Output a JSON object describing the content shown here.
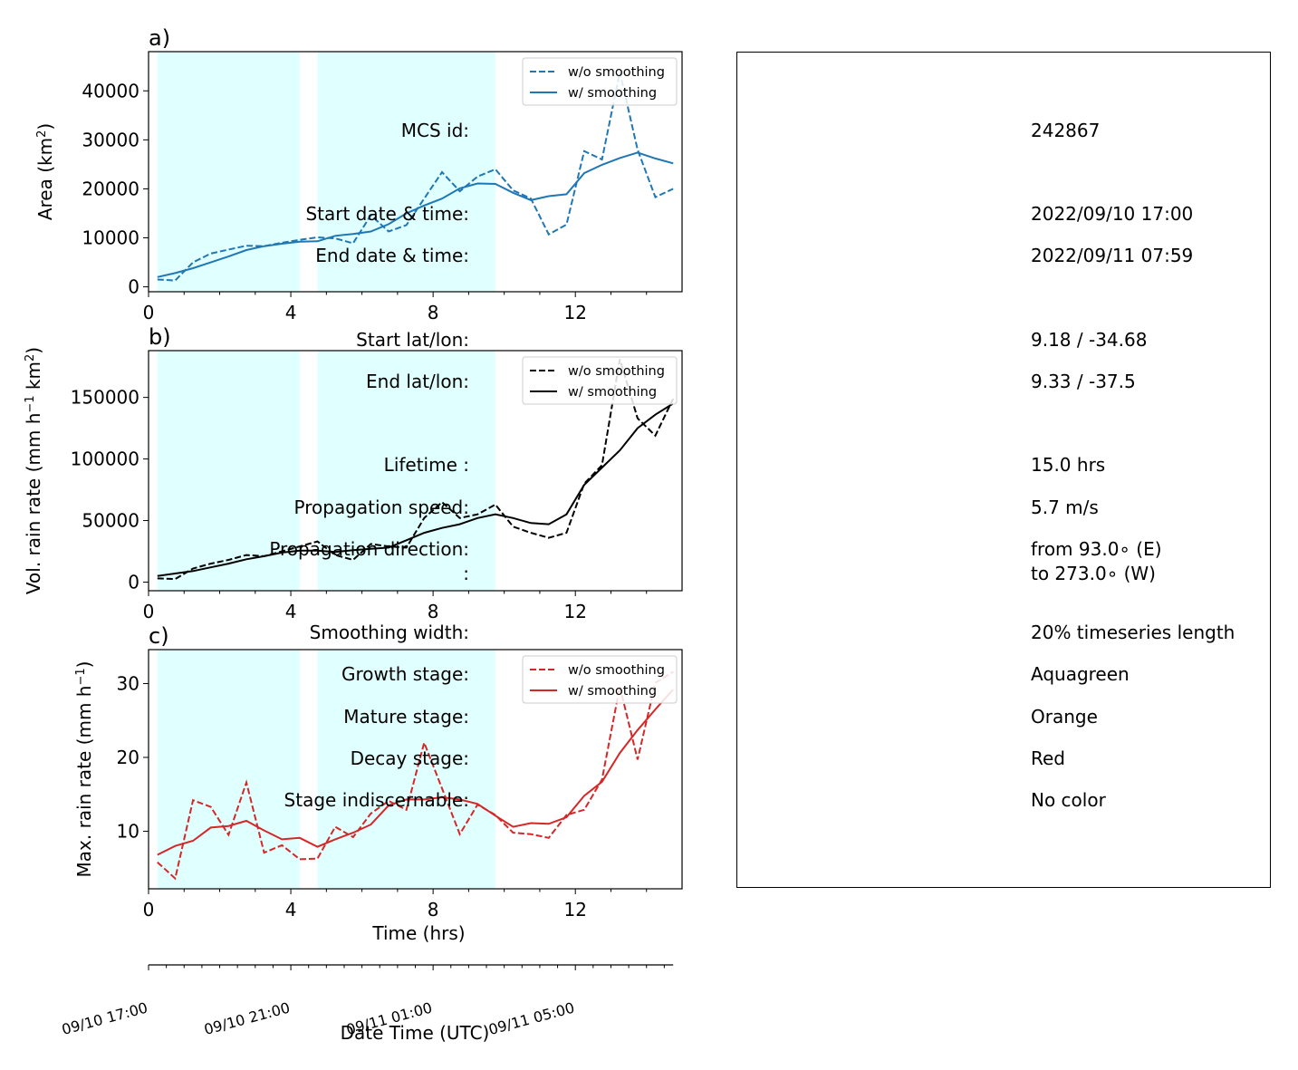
{
  "chart_data": [
    {
      "type": "line",
      "panel": "a)",
      "ylabel": "Area  (km²)",
      "xlim": [
        0,
        15
      ],
      "ylim": [
        -1000,
        48000
      ],
      "xticks": [
        0,
        4,
        8,
        12
      ],
      "yticks": [
        0,
        10000,
        20000,
        30000,
        40000
      ],
      "shaded_spans": [
        [
          0.25,
          4.25
        ],
        [
          4.75,
          9.75
        ]
      ],
      "legend": "top-right",
      "series": [
        {
          "name": "w/o smoothing",
          "style": "dashed",
          "color": "#1f77b4",
          "x": [
            0.25,
            0.75,
            1.25,
            1.75,
            2.25,
            2.75,
            3.25,
            3.75,
            4.25,
            4.75,
            5.25,
            5.75,
            6.25,
            6.75,
            7.25,
            7.75,
            8.25,
            8.75,
            9.25,
            9.75,
            10.25,
            10.75,
            11.25,
            11.75,
            12.25,
            12.75,
            13.25,
            13.75,
            14.25,
            14.75
          ],
          "y": [
            1500,
            1300,
            5000,
            6800,
            7600,
            8400,
            8300,
            9000,
            9600,
            10100,
            9900,
            8900,
            14600,
            11300,
            12600,
            18000,
            23400,
            19500,
            22500,
            24000,
            19700,
            18000,
            10700,
            12700,
            27700,
            26000,
            43800,
            28000,
            18300,
            20000
          ]
        },
        {
          "name": "w/ smoothing",
          "style": "solid",
          "color": "#1f77b4",
          "x": [
            0.25,
            0.75,
            1.25,
            1.75,
            2.25,
            2.75,
            3.25,
            3.75,
            4.25,
            4.75,
            5.25,
            5.75,
            6.25,
            6.75,
            7.25,
            7.75,
            8.25,
            8.75,
            9.25,
            9.75,
            10.25,
            10.75,
            11.25,
            11.75,
            12.25,
            12.75,
            13.25,
            13.75,
            14.25,
            14.75
          ],
          "y": [
            2000,
            2800,
            3800,
            5000,
            6200,
            7500,
            8300,
            8800,
            9200,
            9300,
            10400,
            10800,
            11300,
            12800,
            15000,
            16600,
            18000,
            20100,
            21100,
            21000,
            19200,
            17700,
            18500,
            18900,
            23200,
            24900,
            26300,
            27400,
            26200,
            25200
          ]
        }
      ]
    },
    {
      "type": "line",
      "panel": "b)",
      "ylabel": "Vol. rain rate (mm h⁻¹ km²)",
      "xlim": [
        0,
        15
      ],
      "ylim": [
        -7000,
        188000
      ],
      "xticks": [
        0,
        4,
        8,
        12
      ],
      "yticks": [
        0,
        50000,
        100000,
        150000
      ],
      "shaded_spans": [
        [
          0.25,
          4.25
        ],
        [
          4.75,
          9.75
        ]
      ],
      "legend": "top-right",
      "series": [
        {
          "name": "w/o smoothing",
          "style": "dashed",
          "color": "#000000",
          "x": [
            0.25,
            0.75,
            1.25,
            1.75,
            2.25,
            2.75,
            3.25,
            3.75,
            4.25,
            4.75,
            5.25,
            5.75,
            6.25,
            6.75,
            7.25,
            7.75,
            8.25,
            8.75,
            9.25,
            9.75,
            10.25,
            10.75,
            11.25,
            11.75,
            12.25,
            12.75,
            13.25,
            13.75,
            14.25,
            14.75
          ],
          "y": [
            3000,
            2500,
            11000,
            15000,
            18000,
            22000,
            21000,
            25000,
            29000,
            33000,
            22000,
            18000,
            31000,
            29000,
            28000,
            52000,
            65000,
            52000,
            55000,
            63000,
            45000,
            40000,
            36000,
            40000,
            80000,
            95000,
            181000,
            133000,
            119000,
            149000
          ]
        },
        {
          "name": "w/ smoothing",
          "style": "solid",
          "color": "#000000",
          "x": [
            0.25,
            0.75,
            1.25,
            1.75,
            2.25,
            2.75,
            3.25,
            3.75,
            4.25,
            4.75,
            5.25,
            5.75,
            6.25,
            6.75,
            7.25,
            7.75,
            8.25,
            8.75,
            9.25,
            9.75,
            10.25,
            10.75,
            11.25,
            11.75,
            12.25,
            12.75,
            13.25,
            13.75,
            14.25,
            14.75
          ],
          "y": [
            5000,
            7000,
            9000,
            12000,
            15000,
            18500,
            21000,
            24000,
            25500,
            25500,
            24500,
            26000,
            27000,
            28000,
            34000,
            40000,
            44000,
            47000,
            52000,
            55000,
            52000,
            48000,
            47000,
            55000,
            79000,
            93000,
            107000,
            125000,
            136000,
            145000
          ]
        }
      ]
    },
    {
      "type": "line",
      "panel": "c)",
      "ylabel": "Max. rain rate  (mm h⁻¹)",
      "xlabel": "Time (hrs)",
      "xlim": [
        0,
        15
      ],
      "ylim": [
        2.2,
        34.6
      ],
      "xticks": [
        0,
        4,
        8,
        12
      ],
      "yticks": [
        10,
        20,
        30
      ],
      "shaded_spans": [
        [
          0.25,
          4.25
        ],
        [
          4.75,
          9.75
        ]
      ],
      "legend": "top-right",
      "series": [
        {
          "name": "w/o smoothing",
          "style": "dashed",
          "color": "#d62728",
          "x": [
            0.25,
            0.75,
            1.25,
            1.75,
            2.25,
            2.75,
            3.25,
            3.75,
            4.25,
            4.75,
            5.25,
            5.75,
            6.25,
            6.75,
            7.25,
            7.75,
            8.25,
            8.75,
            9.25,
            9.75,
            10.25,
            10.75,
            11.25,
            11.75,
            12.25,
            12.75,
            13.25,
            13.75,
            14.25,
            14.75
          ],
          "y": [
            5.8,
            3.6,
            14.2,
            13.3,
            9.5,
            16.6,
            7.1,
            8.1,
            6.2,
            6.3,
            10.6,
            9.2,
            12.4,
            14.1,
            12.9,
            22.0,
            15.8,
            9.6,
            13.6,
            12.2,
            9.8,
            9.6,
            9.1,
            12.2,
            12.9,
            17.0,
            29.6,
            19.7,
            30.1,
            31.6
          ]
        },
        {
          "name": "w/ smoothing",
          "style": "solid",
          "color": "#d62728",
          "x": [
            0.25,
            0.75,
            1.25,
            1.75,
            2.25,
            2.75,
            3.25,
            3.75,
            4.25,
            4.75,
            5.25,
            5.75,
            6.25,
            6.75,
            7.25,
            7.75,
            8.25,
            8.75,
            9.25,
            9.75,
            10.25,
            10.75,
            11.25,
            11.75,
            12.25,
            12.75,
            13.25,
            13.75,
            14.25,
            14.75
          ],
          "y": [
            6.8,
            8.0,
            8.7,
            10.5,
            10.7,
            11.4,
            10.1,
            8.9,
            9.1,
            7.9,
            8.9,
            9.8,
            10.9,
            13.5,
            14.3,
            14.3,
            14.6,
            14.3,
            13.7,
            12.1,
            10.6,
            11.1,
            11.0,
            11.9,
            14.8,
            16.7,
            20.6,
            23.7,
            26.5,
            29.2
          ]
        }
      ]
    }
  ],
  "date_axis": {
    "xlabel": "Date Time (UTC)",
    "ticks": [
      {
        "hours": 0,
        "label": "09/10 17:00"
      },
      {
        "hours": 4,
        "label": "09/10 21:00"
      },
      {
        "hours": 8,
        "label": "09/11 01:00"
      },
      {
        "hours": 12,
        "label": "09/11 05:00"
      }
    ]
  },
  "info": [
    {
      "label": "MCS id:",
      "value": "242867"
    },
    {
      "label": "Start date & time:",
      "value": "2022/09/10 17:00"
    },
    {
      "label": "End date & time:",
      "value": "2022/09/11 07:59"
    },
    {
      "label": "Start lat/lon:",
      "value": "9.18 / -34.68"
    },
    {
      "label": "End lat/lon:",
      "value": "9.33 / -37.5"
    },
    {
      "label": "Lifetime :",
      "value": "15.0 hrs"
    },
    {
      "label": "Propagation speed:",
      "value": "5.7 m/s"
    },
    {
      "label": "Propagation direction:",
      "value": "from  93.0∘ (E)"
    },
    {
      "label": ":",
      "value": "to   273.0∘ (W)"
    },
    {
      "label": "Smoothing width:",
      "value": "20% timeseries length"
    },
    {
      "label": "Growth stage:",
      "value": "Aquagreen"
    },
    {
      "label": "Mature stage:",
      "value": "Orange"
    },
    {
      "label": "Decay stage:",
      "value": "Red"
    },
    {
      "label": "Stage indiscernable:",
      "value": "No color"
    }
  ],
  "colors": {
    "growth_span": "#e0ffff",
    "blue": "#1f77b4",
    "black": "#000000",
    "red": "#d62728"
  }
}
